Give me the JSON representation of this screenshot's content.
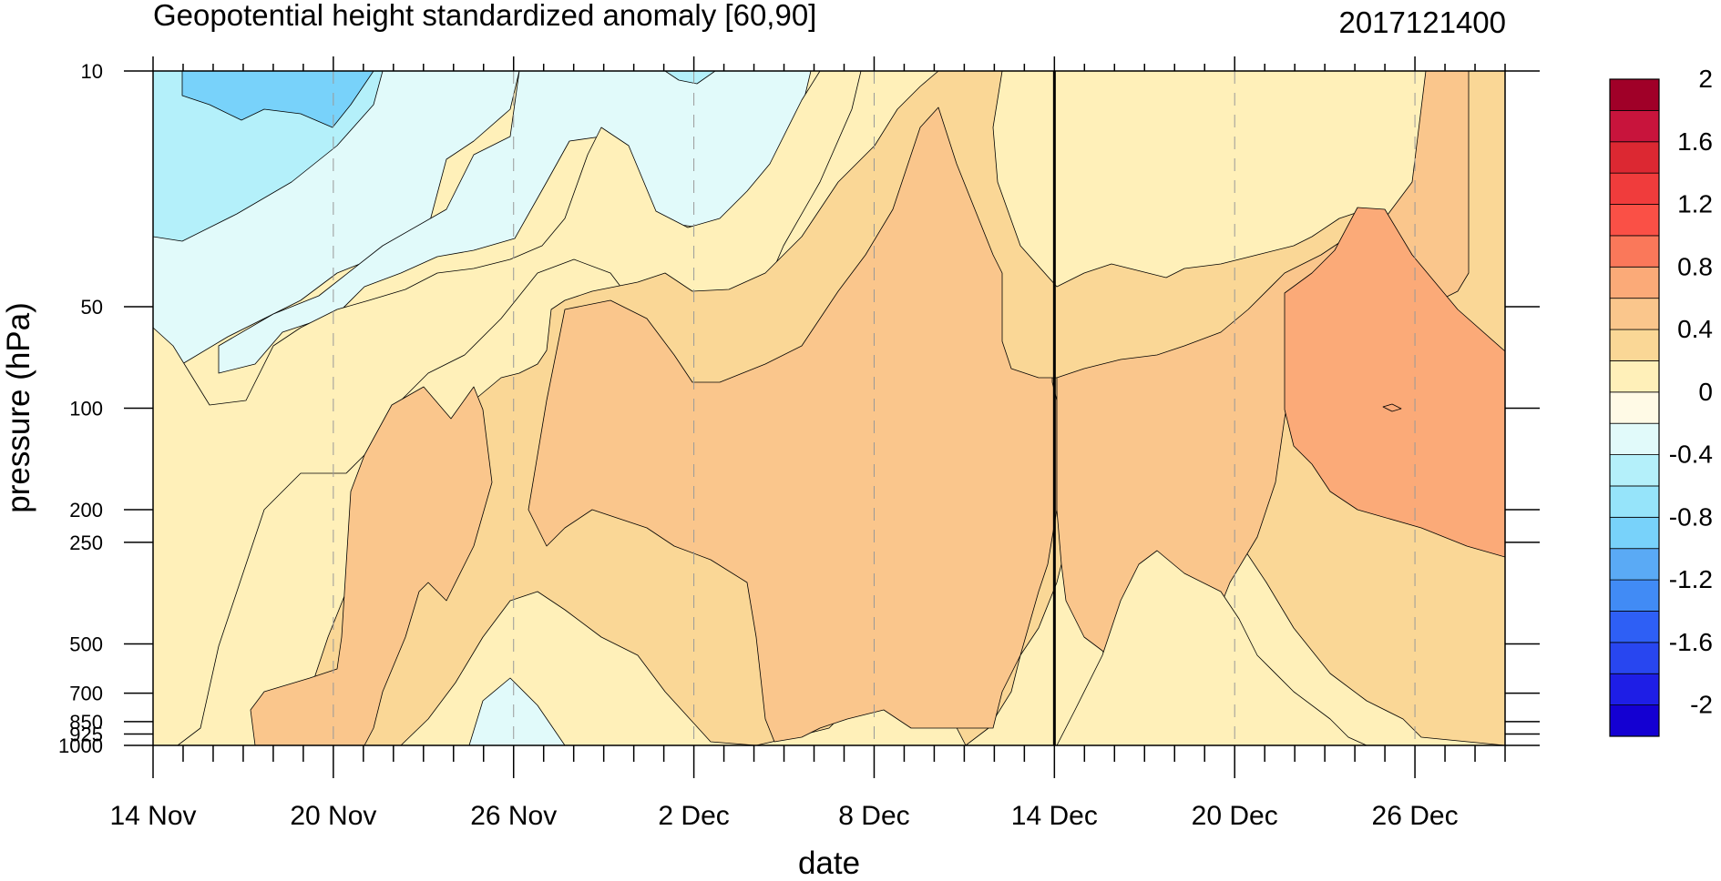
{
  "chart_data": {
    "type": "contour",
    "title": "Geopotential height standardized anomaly [60,90]",
    "subtitle": "2017121400",
    "xlabel": "date",
    "ylabel": "pressure (hPa)",
    "x_ticks": [
      "14 Nov",
      "20 Nov",
      "26 Nov",
      "2 Dec",
      "8 Dec",
      "14 Dec",
      "20 Dec",
      "26 Dec"
    ],
    "x_range": [
      "2017-11-14",
      "2017-12-29"
    ],
    "y_ticks": [
      "10",
      "50",
      "100",
      "200",
      "250",
      "500",
      "700",
      "850",
      "925",
      "1000"
    ],
    "y_range": [
      1000,
      10
    ],
    "y_scale": "log",
    "marker_line": "2017-12-14",
    "colorbar": {
      "labels": [
        "2",
        "1.6",
        "1.2",
        "0.8",
        "0.4",
        "0",
        "-0.4",
        "-0.8",
        "-1.2",
        "-1.6",
        "-2"
      ],
      "levels": [
        -2,
        -1.8,
        -1.6,
        -1.4,
        -1.2,
        -1.0,
        -0.8,
        -0.6,
        -0.4,
        -0.2,
        0,
        0.2,
        0.4,
        0.6,
        0.8,
        1.0,
        1.2,
        1.4,
        1.6,
        1.8,
        2.0
      ],
      "colors": [
        "#1400d2",
        "#1e1ee6",
        "#2846f0",
        "#2e5ff5",
        "#418bf5",
        "#5aaaf5",
        "#78d2fa",
        "#96e4fa",
        "#b4f0fa",
        "#e1fafa",
        "#fffae6",
        "#fff0b9",
        "#fad796",
        "#fac68c",
        "#fbaa78",
        "#fa785a",
        "#fa5046",
        "#f03c3c",
        "#dc2832",
        "#c8143c",
        "#a00028"
      ]
    },
    "region_levels": {
      "negative_strong": -0.8,
      "negative_mid": -0.4,
      "negative_weak": -0.2,
      "positive_weak": 0.2,
      "positive_mid": 0.4,
      "positive_strong": 0.6,
      "positive_peak": 0.8
    }
  }
}
